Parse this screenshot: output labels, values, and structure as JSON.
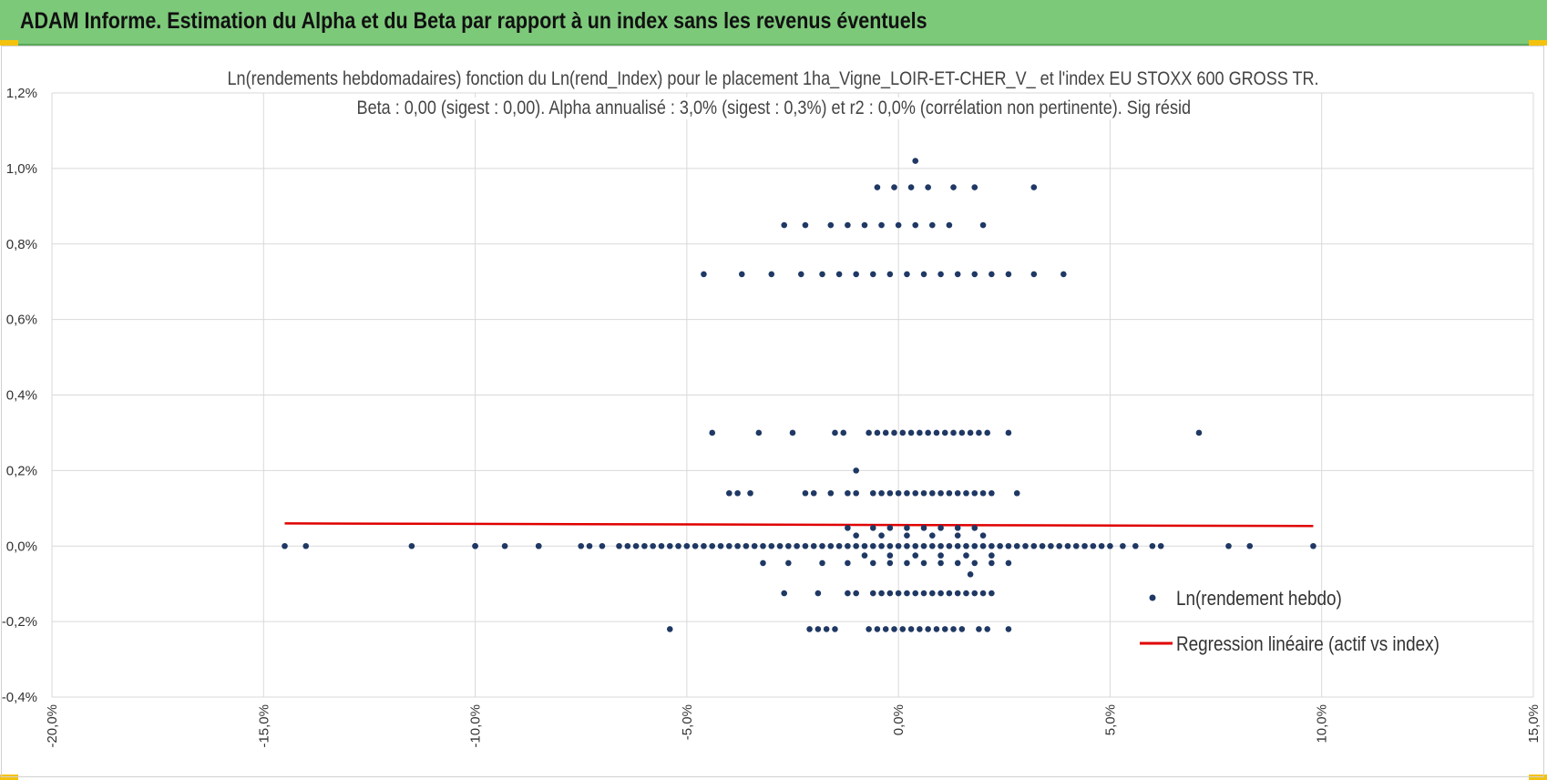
{
  "header": {
    "title": "ADAM Informe. Estimation du Alpha et du Beta par rapport à un index sans les revenus éventuels"
  },
  "chart_data": {
    "type": "scatter",
    "title": "Ln(rendements hebdomadaires) fonction du Ln(rend_Index) pour le placement 1ha_Vigne_LOIR-ET-CHER_V_ et l'index EU STOXX 600 GROSS TR.",
    "subtitle": "Beta : 0,00 (sigest : 0,00). Alpha annualisé : 3,0% (sigest : 0,3%) et r2 : 0,0% (corrélation non pertinente). Sig résid",
    "xlim": [
      -0.2,
      0.15
    ],
    "ylim": [
      -0.004,
      0.012
    ],
    "x_ticks": [
      "-20,0%",
      "-15,0%",
      "-10,0%",
      "-5,0%",
      "0,0%",
      "5,0%",
      "10,0%",
      "15,0%"
    ],
    "y_ticks": [
      "-0,4%",
      "-0,2%",
      "0,0%",
      "0,2%",
      "0,4%",
      "0,6%",
      "0,8%",
      "1,0%",
      "1,2%"
    ],
    "grid": true,
    "legend_position": "bottom-right",
    "series": [
      {
        "name": "Ln(rendement hebdo)",
        "type": "scatter",
        "color": "#1f3864",
        "clusters": [
          {
            "y": 0.0,
            "x": [
              -0.145,
              -0.14,
              -0.115,
              -0.1,
              -0.1,
              -0.093,
              -0.085,
              -0.085,
              -0.075,
              -0.073,
              -0.07,
              -0.066,
              -0.064,
              -0.062,
              -0.06,
              -0.058,
              -0.056,
              -0.054,
              -0.052,
              -0.05,
              -0.048,
              -0.046,
              -0.044,
              -0.042,
              -0.04,
              -0.038,
              -0.036,
              -0.034,
              -0.032,
              -0.03,
              -0.028,
              -0.026,
              -0.024,
              -0.022,
              -0.02,
              -0.018,
              -0.016,
              -0.014,
              -0.012,
              -0.01,
              -0.008,
              -0.006,
              -0.004,
              -0.002,
              0.0,
              0.002,
              0.004,
              0.006,
              0.008,
              0.01,
              0.012,
              0.014,
              0.016,
              0.018,
              0.02,
              0.022,
              0.024,
              0.026,
              0.028,
              0.03,
              0.032,
              0.034,
              0.036,
              0.038,
              0.04,
              0.042,
              0.044,
              0.046,
              0.048,
              0.05,
              0.053,
              0.056,
              0.06,
              0.062,
              0.078,
              0.083,
              0.098
            ]
          },
          {
            "y": 0.00048,
            "x": [
              -0.012,
              -0.006,
              -0.002,
              0.002,
              0.006,
              0.01,
              0.014,
              0.018
            ]
          },
          {
            "y": -0.00045,
            "x": [
              -0.032,
              -0.026,
              -0.018,
              -0.012,
              -0.006,
              -0.002,
              0.002,
              0.006,
              0.01,
              0.014,
              0.018,
              0.022,
              0.026
            ]
          },
          {
            "y": 0.00028,
            "x": [
              -0.01,
              -0.004,
              0.002,
              0.008,
              0.014,
              0.02
            ]
          },
          {
            "y": -0.00025,
            "x": [
              -0.008,
              -0.002,
              0.004,
              0.01,
              0.016,
              0.022
            ]
          },
          {
            "y": -0.00075,
            "x": [
              0.017
            ]
          },
          {
            "y": 0.0014,
            "x": [
              -0.04,
              -0.038,
              -0.035,
              -0.022,
              -0.02,
              -0.016,
              -0.012,
              -0.01,
              -0.006,
              -0.004,
              -0.002,
              0.0,
              0.002,
              0.004,
              0.006,
              0.008,
              0.01,
              0.012,
              0.014,
              0.016,
              0.018,
              0.02,
              0.022,
              0.028
            ]
          },
          {
            "y": 0.002,
            "x": [
              -0.01
            ]
          },
          {
            "y": 0.003,
            "x": [
              -0.044,
              -0.033,
              -0.025,
              -0.015,
              -0.013,
              -0.007,
              -0.005,
              -0.003,
              -0.001,
              0.001,
              0.003,
              0.005,
              0.007,
              0.009,
              0.011,
              0.013,
              0.015,
              0.017,
              0.019,
              0.021,
              0.026,
              0.071
            ]
          },
          {
            "y": -0.00125,
            "x": [
              -0.027,
              -0.019,
              -0.012,
              -0.01,
              -0.006,
              -0.004,
              -0.002,
              0.0,
              0.002,
              0.004,
              0.006,
              0.008,
              0.01,
              0.012,
              0.014,
              0.016,
              0.018,
              0.02,
              0.022
            ]
          },
          {
            "y": -0.0022,
            "x": [
              -0.054,
              -0.021,
              -0.019,
              -0.017,
              -0.015,
              -0.007,
              -0.005,
              -0.003,
              -0.001,
              0.001,
              0.003,
              0.005,
              0.007,
              0.009,
              0.011,
              0.013,
              0.015,
              0.019,
              0.021,
              0.026
            ]
          },
          {
            "y": 0.0072,
            "x": [
              -0.046,
              -0.037,
              -0.03,
              -0.023,
              -0.018,
              -0.014,
              -0.01,
              -0.006,
              -0.002,
              0.002,
              0.006,
              0.01,
              0.014,
              0.018,
              0.022,
              0.026,
              0.032,
              0.039
            ]
          },
          {
            "y": 0.0085,
            "x": [
              -0.027,
              -0.022,
              -0.016,
              -0.012,
              -0.008,
              -0.004,
              0.0,
              0.004,
              0.008,
              0.012,
              0.02
            ]
          },
          {
            "y": 0.0095,
            "x": [
              -0.005,
              -0.001,
              0.003,
              0.007,
              0.013,
              0.018,
              0.032
            ]
          },
          {
            "y": 0.0102,
            "x": [
              0.004
            ]
          }
        ]
      },
      {
        "name": "Regression linéaire (actif vs index)",
        "type": "line",
        "color": "#e00000",
        "x": [
          -0.145,
          0.098
        ],
        "y": [
          0.0006,
          0.00053
        ]
      }
    ]
  }
}
